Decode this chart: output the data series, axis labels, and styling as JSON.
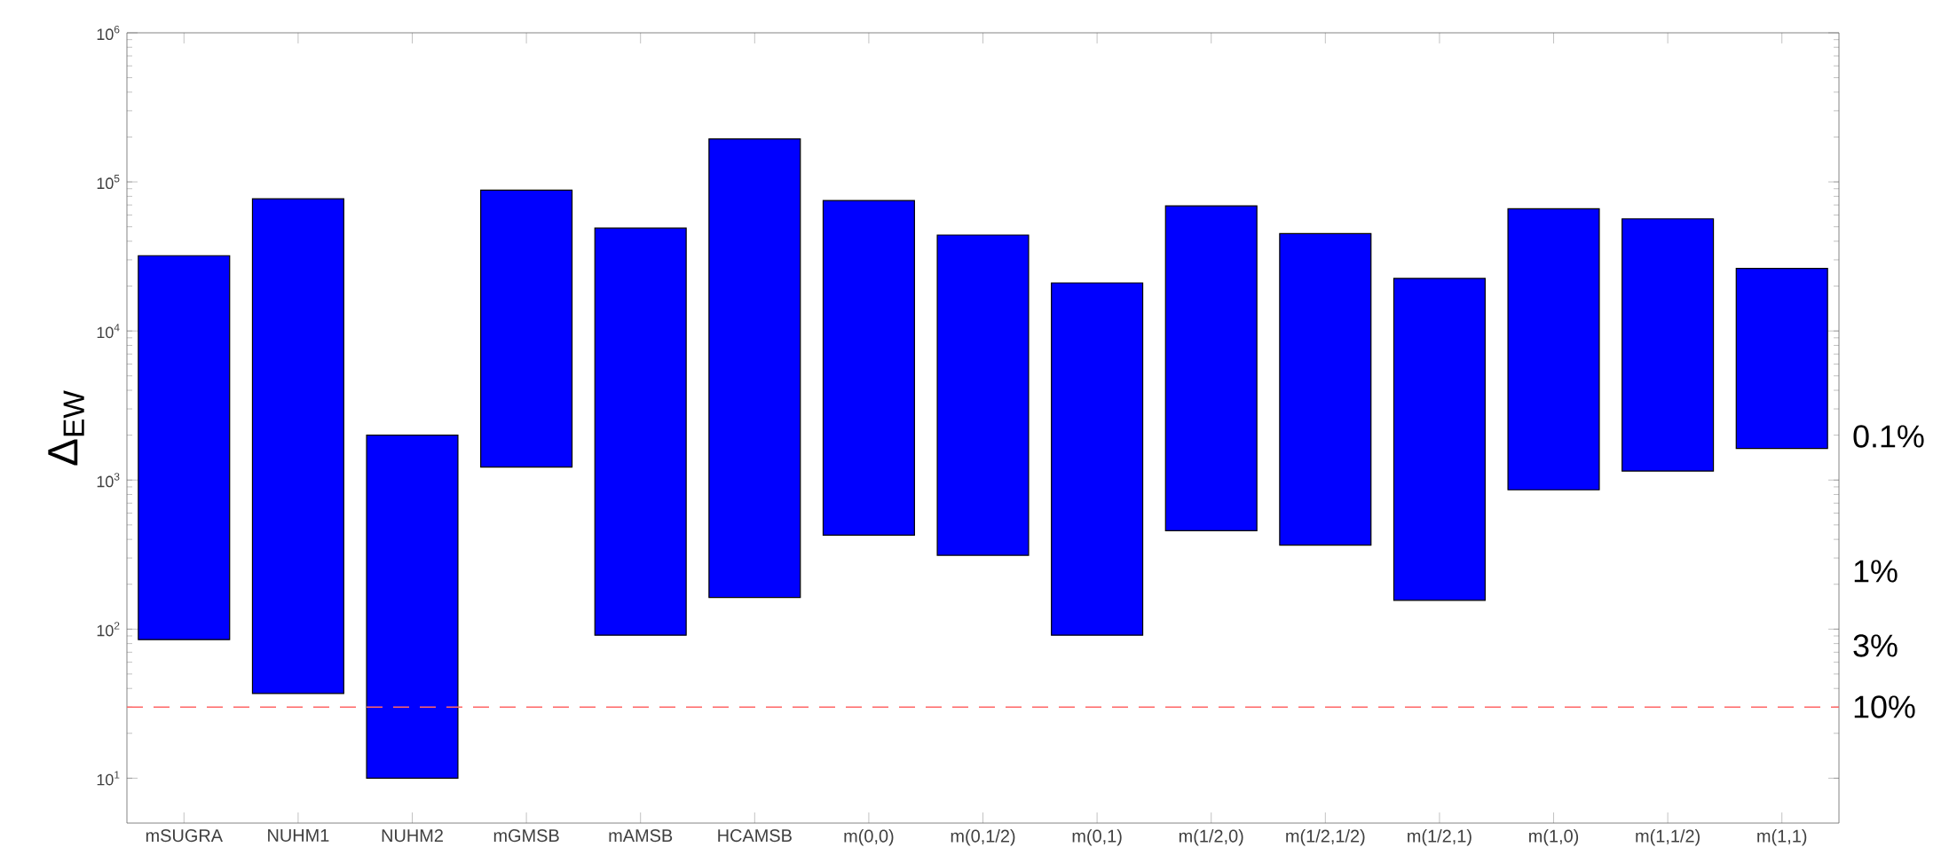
{
  "chart_data": {
    "type": "bar",
    "ylabel": "Δ$_{EW}$",
    "log": "y",
    "color": "#0000ff",
    "categories": [
      "mSUGRA",
      "NUHM1",
      "NUHM2",
      "mGMSB",
      "mAMSB",
      "HCAMSB",
      "m(0,0)",
      "m(0,1/2)",
      "m(0,1)",
      "m(1/2,0)",
      "m(1/2,1/2)",
      "m(1/2,1)",
      "m(1,0)",
      "m(1,1/2)",
      "m(1,1)"
    ],
    "base": [
      85,
      37,
      10,
      1220,
      91,
      163,
      427,
      313,
      91,
      457,
      366,
      156,
      860,
      1150,
      1630
    ],
    "values": [
      31915,
      76963,
      1990,
      86780,
      48909,
      193837,
      74573,
      43687,
      20909,
      68543,
      44634,
      22344,
      65140,
      55350,
      24670
    ],
    "ylim": [
      5,
      1000000
    ],
    "yticks": [
      {
        "value": 10,
        "label": "10$^{1}$"
      },
      {
        "value": 100,
        "label": "10$^{2}$"
      },
      {
        "value": 1000,
        "label": "10$^{3}$"
      },
      {
        "value": 10000,
        "label": "10$^{4}$"
      },
      {
        "value": 100000,
        "label": "10$^{5}$"
      },
      {
        "value": 1000000,
        "label": "10$^{6}$"
      }
    ],
    "ref_lines": [
      {
        "axis": "y",
        "value": 30,
        "color": "#ff6666",
        "line_style": "dashed"
      }
    ],
    "annotations": [
      "0.1%",
      "1%",
      "3%",
      "10%"
    ]
  }
}
